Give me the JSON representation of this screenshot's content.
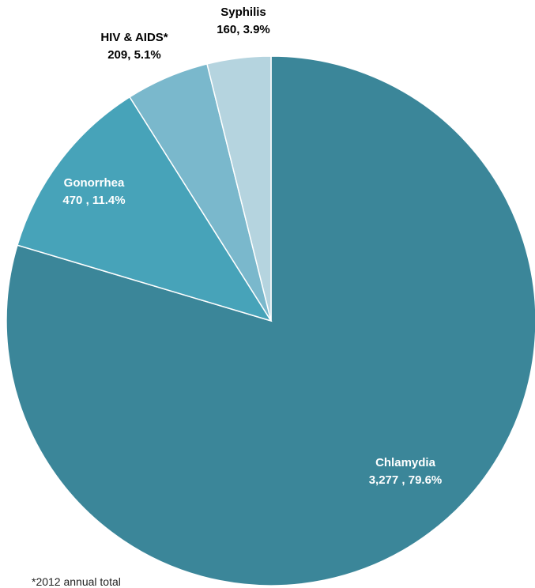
{
  "chart_data": {
    "type": "pie",
    "title": "",
    "slices": [
      {
        "name": "Chlamydia",
        "value": 3277,
        "value_label": "3,277 , 79.6%",
        "percent": 79.6,
        "color": "#3b8699",
        "label_color": "#ffffff"
      },
      {
        "name": "Gonorrhea",
        "value": 470,
        "value_label": "470 , 11.4%",
        "percent": 11.4,
        "color": "#47a3b9",
        "label_color": "#ffffff"
      },
      {
        "name": "HIV & AIDS*",
        "value": 209,
        "value_label": "209, 5.1%",
        "percent": 5.1,
        "color": "#7ab8cc",
        "label_color": "#000000"
      },
      {
        "name": "Syphilis",
        "value": 160,
        "value_label": "160, 3.9%",
        "percent": 3.9,
        "color": "#b5d4df",
        "label_color": "#000000"
      }
    ],
    "start_angle": "12 o'clock",
    "direction": "clockwise",
    "legend": "none"
  },
  "footnote": "*2012 annual total"
}
